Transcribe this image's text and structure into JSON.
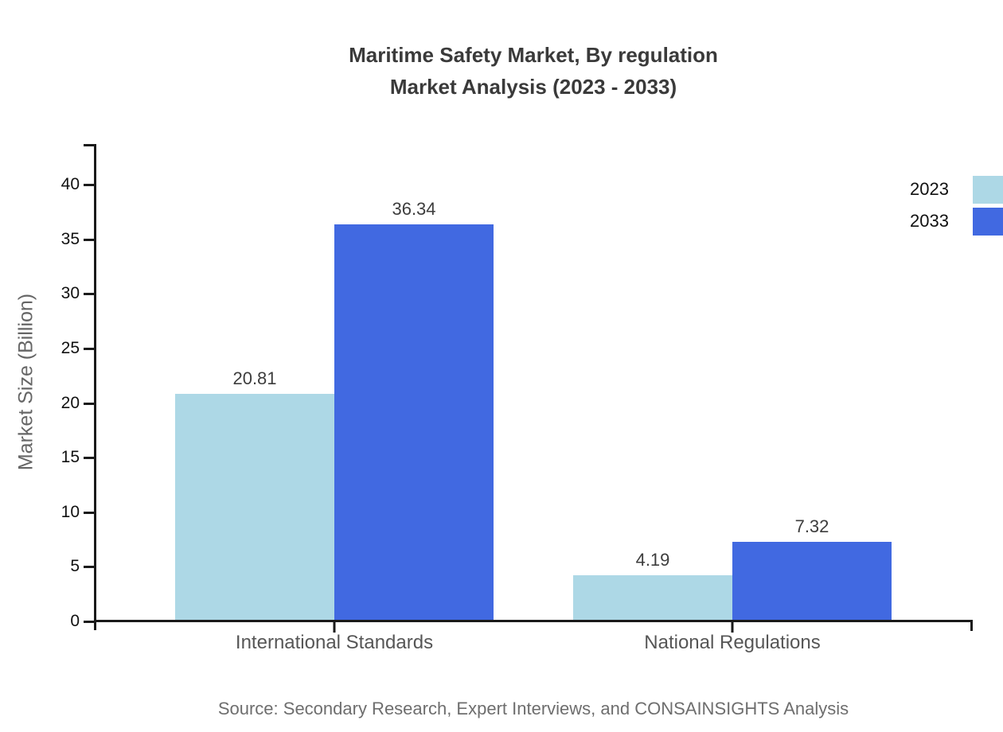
{
  "title": {
    "line1": "Maritime Safety Market, By regulation",
    "line2": "Market Analysis (2023 - 2033)"
  },
  "source_note": "Source: Secondary Research, Expert Interviews, and CONSAINSIGHTS Analysis",
  "chart_data": {
    "type": "bar",
    "title": "Maritime Safety Market, By regulation Market Analysis (2023 - 2033)",
    "categories": [
      "International Standards",
      "National Regulations"
    ],
    "series": [
      {
        "name": "2023",
        "color": "#add8e6",
        "values": [
          20.81,
          4.19
        ]
      },
      {
        "name": "2033",
        "color": "#4169e1",
        "values": [
          36.34,
          7.32
        ]
      }
    ],
    "xlabel": "",
    "ylabel": "Market Size (Billion)",
    "ylim": [
      0,
      40
    ],
    "yticks": [
      0,
      5,
      10,
      15,
      20,
      25,
      30,
      35,
      40
    ],
    "grid": false,
    "legend_position": "top-right",
    "value_labels": true,
    "axis_color": "#1a1a1a"
  }
}
